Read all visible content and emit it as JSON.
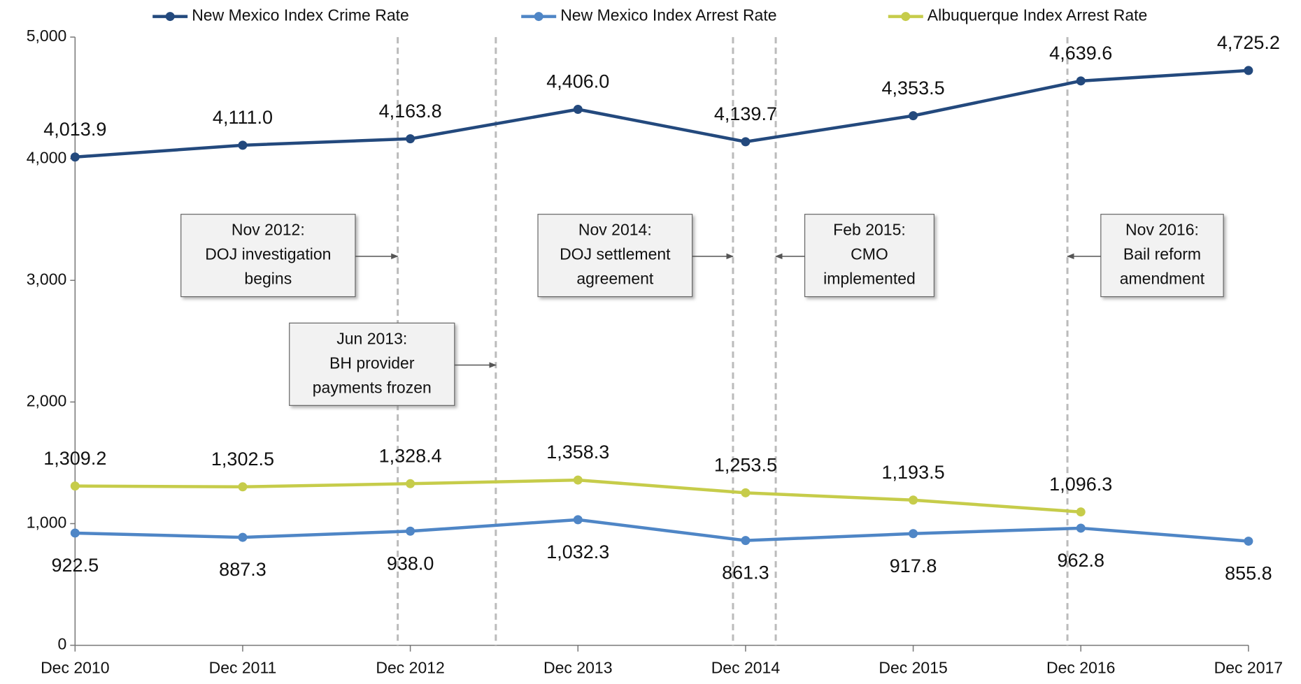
{
  "chart_data": {
    "type": "line",
    "categories": [
      "Dec 2010",
      "Dec 2011",
      "Dec 2012",
      "Dec 2013",
      "Dec 2014",
      "Dec 2015",
      "Dec 2016",
      "Dec 2017"
    ],
    "series": [
      {
        "name": "New Mexico Index Crime Rate",
        "color": "#23497d",
        "values": [
          4013.9,
          4111.0,
          4163.8,
          4406.0,
          4139.7,
          4353.5,
          4639.6,
          4725.2
        ],
        "value_labels": [
          "4,013.9",
          "4,111.0",
          "4,163.8",
          "4,406.0",
          "4,139.7",
          "4,353.5",
          "4,639.6",
          "4,725.2"
        ]
      },
      {
        "name": "New Mexico Index Arrest Rate",
        "color": "#4f86c6",
        "values": [
          922.5,
          887.3,
          938.0,
          1032.3,
          861.3,
          917.8,
          962.8,
          855.8
        ],
        "value_labels": [
          "922.5",
          "887.3",
          "938.0",
          "1,032.3",
          "861.3",
          "917.8",
          "962.8",
          "855.8"
        ]
      },
      {
        "name": "Albuquerque Index Arrest Rate",
        "color": "#c6cc4a",
        "values": [
          1309.2,
          1302.5,
          1328.4,
          1358.3,
          1253.5,
          1193.5,
          1096.3,
          null
        ],
        "value_labels": [
          "1,309.2",
          "1,302.5",
          "1,328.4",
          "1,358.3",
          "1,253.5",
          "1,193.5",
          "1,096.3",
          null
        ]
      }
    ],
    "ylim": [
      0,
      5000
    ],
    "yticks": [
      0,
      {
        "value": 1000,
        "label": "1,000"
      },
      {
        "value": 2000,
        "label": "2,000"
      },
      {
        "value": 3000,
        "label": "3,000"
      },
      {
        "value": 4000,
        "label": "4,000"
      },
      {
        "value": 5000,
        "label": "5,000"
      }
    ],
    "grid": false,
    "legend": "top",
    "annotations": [
      {
        "lines": [
          "Nov 2012:",
          "DOJ investigation",
          "begins"
        ]
      },
      {
        "lines": [
          "Jun 2013:",
          "BH provider",
          "payments frozen"
        ]
      },
      {
        "lines": [
          "Nov 2014:",
          "DOJ settlement",
          "agreement"
        ]
      },
      {
        "lines": [
          "Feb 2015:",
          "CMO",
          "implemented"
        ]
      },
      {
        "lines": [
          "Nov 2016:",
          "Bail reform",
          "amendment"
        ]
      }
    ]
  }
}
